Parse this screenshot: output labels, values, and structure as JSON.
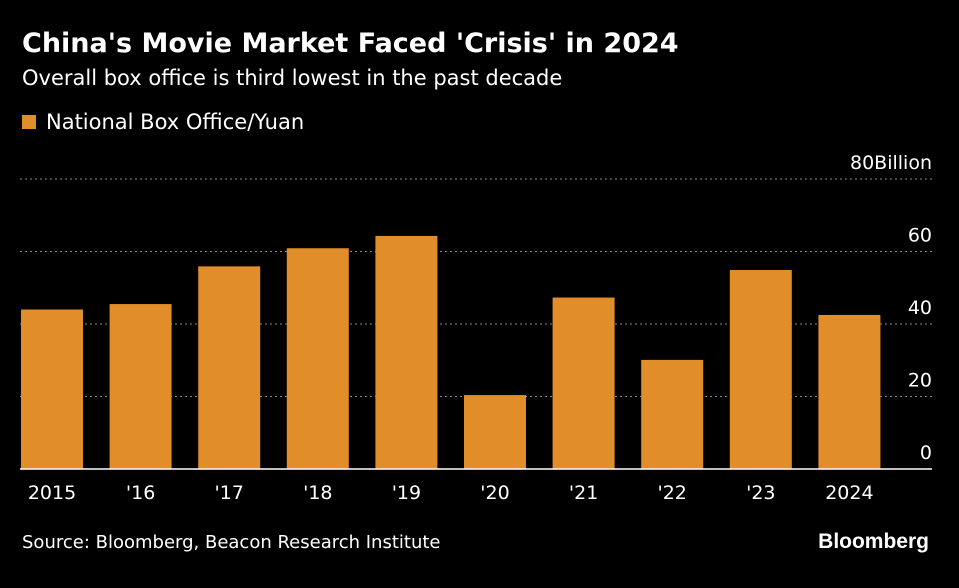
{
  "chart_data": {
    "type": "bar",
    "title": "China's Movie Market Faced 'Crisis' in 2024",
    "subtitle": "Overall box office is third lowest in the past decade",
    "legend": [
      "National Box Office/Yuan"
    ],
    "categories": [
      "2015",
      "'16",
      "'17",
      "'18",
      "'19",
      "'20",
      "'21",
      "'22",
      "'23",
      "2024"
    ],
    "series": [
      {
        "name": "National Box Office/Yuan",
        "values": [
          44,
          45.5,
          55.9,
          60.9,
          64.3,
          20.4,
          47.3,
          30.1,
          54.9,
          42.5
        ]
      }
    ],
    "ylim": [
      0,
      80
    ],
    "yticks": [
      0,
      20,
      40,
      60,
      80
    ],
    "ytick_labels": [
      "0",
      "20",
      "40",
      "60",
      "80Billion"
    ],
    "ylabel_side": "right",
    "grid": "dotted horizontal",
    "color": "#e08d2a"
  },
  "source_text": "Source: Bloomberg, Beacon Research Institute",
  "brand_text": "Bloomberg"
}
